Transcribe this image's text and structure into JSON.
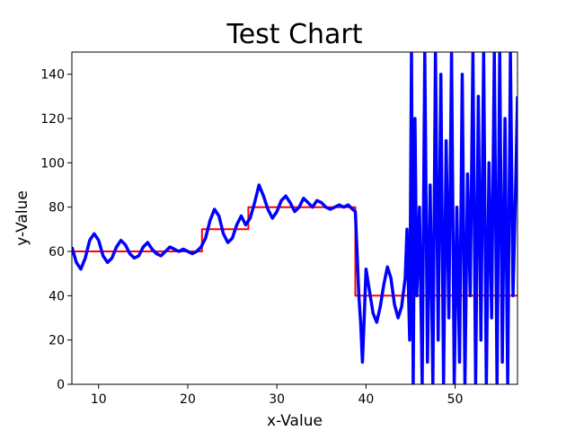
{
  "chart_data": {
    "type": "line",
    "title": "Test Chart",
    "xlabel": "x-Value",
    "ylabel": "y-Value",
    "xlim": [
      7,
      57
    ],
    "ylim": [
      0,
      150
    ],
    "xticks": [
      10,
      20,
      30,
      40,
      50
    ],
    "yticks": [
      0,
      20,
      40,
      60,
      80,
      100,
      120,
      140
    ],
    "grid": false,
    "legend": "none",
    "series": [
      {
        "color": "#ff0000",
        "style": "step",
        "x": [
          7,
          21.6,
          21.6,
          26.8,
          26.8,
          38.8,
          38.8,
          57
        ],
        "y": [
          60,
          60,
          70,
          70,
          80,
          80,
          40,
          40
        ]
      },
      {
        "color": "#0000ff",
        "style": "line",
        "x": [
          7,
          7.5,
          8.0,
          8.5,
          9.0,
          9.5,
          10.0,
          10.5,
          11.0,
          11.5,
          12.0,
          12.5,
          13.0,
          13.5,
          14.0,
          14.5,
          15.0,
          15.5,
          16.0,
          16.5,
          17.0,
          17.5,
          18.0,
          18.5,
          19.0,
          19.5,
          20.0,
          20.5,
          21.0,
          21.5,
          22.0,
          22.5,
          23.0,
          23.5,
          24.0,
          24.5,
          25.0,
          25.5,
          26.0,
          26.5,
          27.0,
          27.5,
          28.0,
          28.5,
          29.0,
          29.5,
          30.0,
          30.5,
          31.0,
          31.5,
          32.0,
          32.5,
          33.0,
          33.5,
          34.0,
          34.5,
          35.0,
          35.5,
          36.0,
          36.5,
          37.0,
          37.5,
          38.0,
          38.5,
          38.8,
          39.0,
          39.2,
          39.4,
          39.6,
          39.8,
          40.0,
          40.4,
          40.8,
          41.2,
          41.6,
          42.0,
          42.4,
          42.8,
          43.2,
          43.6,
          44.0,
          44.4,
          44.6,
          44.9,
          45.1,
          45.3,
          45.5,
          45.7,
          46.0,
          46.3,
          46.6,
          46.9,
          47.2,
          47.5,
          47.8,
          48.1,
          48.4,
          48.7,
          49.0,
          49.3,
          49.6,
          49.9,
          50.2,
          50.5,
          50.8,
          51.1,
          51.4,
          51.7,
          52.0,
          52.3,
          52.6,
          52.9,
          53.2,
          53.5,
          53.8,
          54.1,
          54.4,
          54.7,
          55.0,
          55.3,
          55.6,
          55.9,
          56.2,
          56.5,
          56.8,
          57.0
        ],
        "y": [
          62,
          55,
          52,
          57,
          65,
          68,
          65,
          58,
          55,
          57,
          62,
          65,
          63,
          59,
          57,
          58,
          62,
          64,
          61,
          59,
          58,
          60,
          62,
          61,
          60,
          61,
          60,
          59,
          60,
          62,
          66,
          74,
          79,
          76,
          68,
          64,
          66,
          72,
          76,
          72,
          75,
          82,
          90,
          85,
          79,
          75,
          78,
          83,
          85,
          82,
          78,
          80,
          84,
          82,
          80,
          83,
          82,
          80,
          79,
          80,
          81,
          80,
          81,
          79,
          78,
          60,
          40,
          28,
          10,
          30,
          52,
          42,
          32,
          28,
          35,
          45,
          53,
          48,
          36,
          30,
          35,
          48,
          70,
          20,
          150,
          0,
          120,
          40,
          80,
          0,
          150,
          10,
          90,
          0,
          150,
          20,
          140,
          0,
          110,
          30,
          150,
          0,
          80,
          10,
          140,
          0,
          95,
          40,
          150,
          0,
          130,
          20,
          150,
          0,
          100,
          30,
          150,
          0,
          150,
          10,
          120,
          0,
          150,
          40,
          90,
          130
        ]
      }
    ]
  }
}
